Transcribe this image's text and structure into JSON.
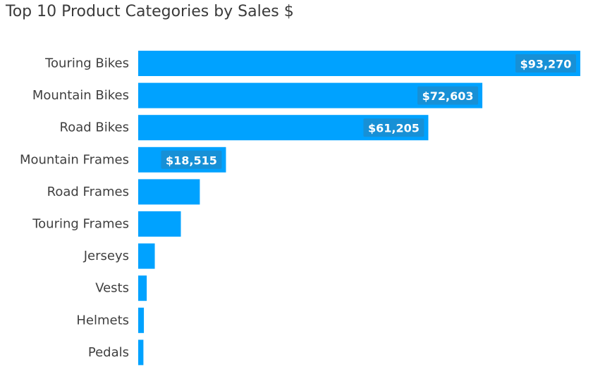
{
  "colors": {
    "bar": "#00A2FF",
    "label_background": "#1790D6",
    "label_text": "#FFFFFF"
  },
  "chart_data": {
    "type": "bar",
    "orientation": "horizontal",
    "title": "Top 10 Product Categories by Sales $",
    "xlabel": "",
    "ylabel": "",
    "grid": false,
    "categories": [
      "Touring Bikes",
      "Mountain Bikes",
      "Road Bikes",
      "Mountain Frames",
      "Road Frames",
      "Touring Frames",
      "Jerseys",
      "Vests",
      "Helmets",
      "Pedals"
    ],
    "values": [
      93270,
      72603,
      61205,
      18515,
      13000,
      9000,
      3500,
      1800,
      1200,
      1100
    ],
    "data_labels": [
      "$93,270",
      "$72,603",
      "$61,205",
      "$18,515",
      null,
      null,
      null,
      null,
      null,
      null
    ],
    "xlim": [
      0,
      93270
    ]
  }
}
